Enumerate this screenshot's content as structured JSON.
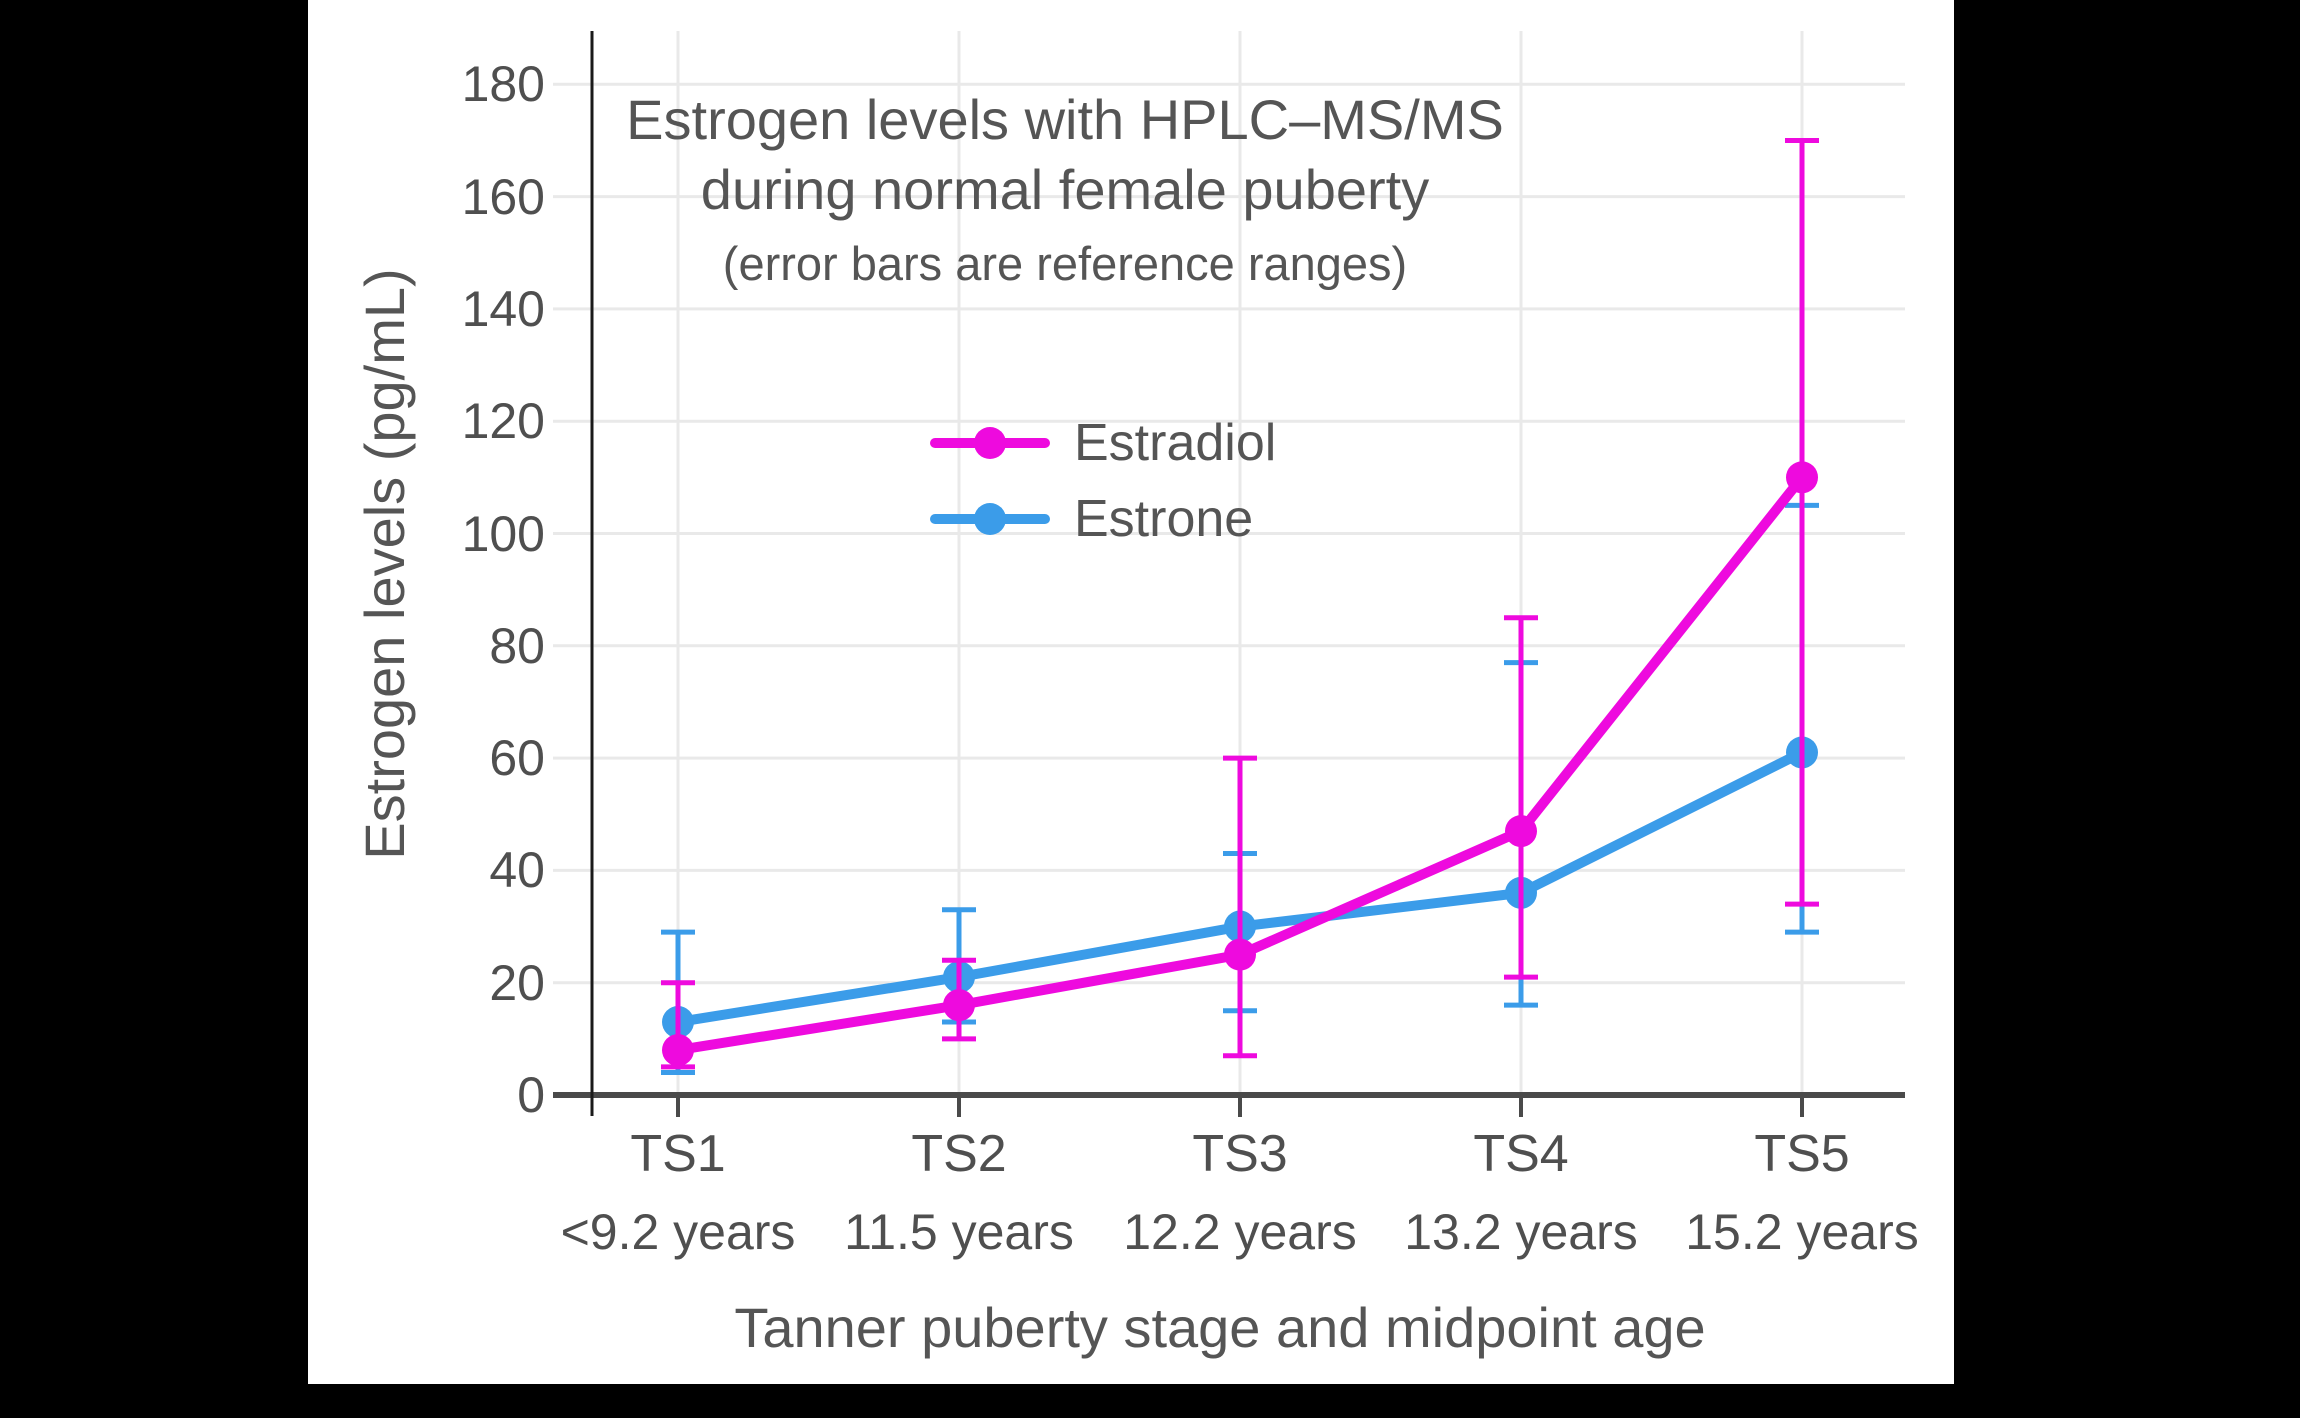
{
  "chart_data": {
    "type": "line",
    "title": "Estrogen levels with HPLC–MS/MS",
    "title_line2": "during normal female puberty",
    "subtitle": "(error bars are reference ranges)",
    "xlabel": "Tanner puberty stage and midpoint age",
    "ylabel": "Estrogen levels (pg/mL)",
    "categories": [
      "TS1",
      "TS2",
      "TS3",
      "TS4",
      "TS5"
    ],
    "category_sublabels": [
      "<9.2 years",
      "11.5 years",
      "12.2 years",
      "13.2 years",
      "15.2 years"
    ],
    "y_ticks": [
      0,
      20,
      40,
      60,
      80,
      100,
      120,
      140,
      160,
      180
    ],
    "ylim": [
      0,
      190
    ],
    "grid": true,
    "legend_position": "upper-left-inside",
    "error_bars": "reference ranges",
    "series": [
      {
        "name": "Estradiol",
        "color": "#EE0ADE",
        "values": [
          8,
          16,
          25,
          47,
          110
        ],
        "error_low": [
          5,
          10,
          7,
          21,
          34
        ],
        "error_high": [
          20,
          24,
          60,
          85,
          170
        ]
      },
      {
        "name": "Estrone",
        "color": "#3B9CE9",
        "values": [
          13,
          21,
          30,
          36,
          61
        ],
        "error_low": [
          4,
          13,
          15,
          16,
          29
        ],
        "error_high": [
          29,
          33,
          43,
          77,
          105
        ]
      }
    ]
  }
}
